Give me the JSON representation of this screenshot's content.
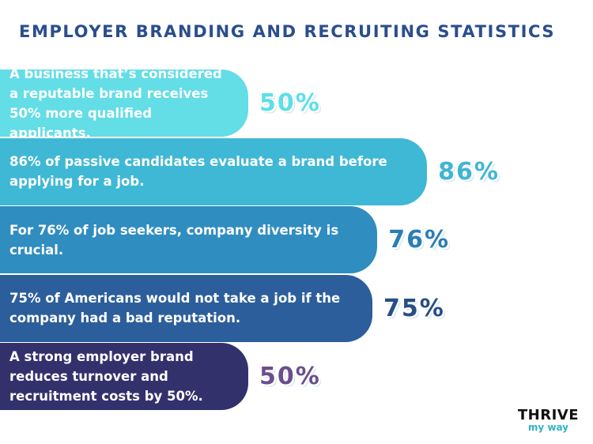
{
  "chart_data": {
    "type": "bar",
    "orientation": "horizontal",
    "title": "EMPLOYER BRANDING AND RECRUITING STATISTICS",
    "categories": [
      "A business that’s considered a reputable brand receives 50% more qualified applicants.",
      "86% of passive candidates evaluate a brand before applying for a job.",
      "For 76% of job seekers, company diversity is crucial.",
      "75% of Americans would not take a job if the company had a bad reputation.",
      "A strong employer brand reduces turnover and recruitment costs by 50%."
    ],
    "values": [
      50,
      86,
      76,
      75,
      50
    ],
    "value_labels": [
      "50%",
      "86%",
      "76%",
      "75%",
      "50%"
    ],
    "colors": [
      "#63dde6",
      "#3fb8d5",
      "#2f8dc0",
      "#2c5e9b",
      "#33316c"
    ],
    "label_colors": [
      "#5ddfe8",
      "#41b4d2",
      "#2b7db5",
      "#294d85",
      "#6a4f8c"
    ]
  },
  "logo": {
    "line1": "THRIVE",
    "line2": "my way"
  }
}
